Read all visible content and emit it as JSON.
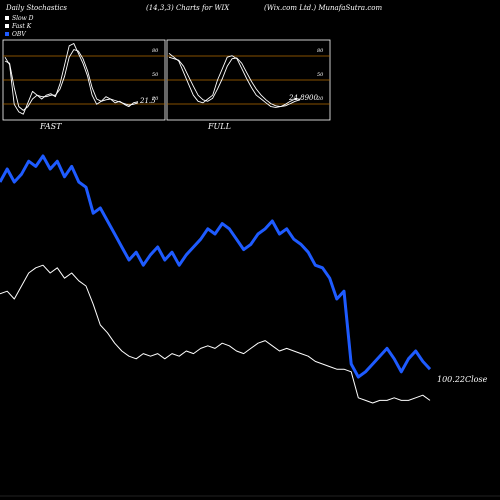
{
  "header": {
    "left": "Daily Stochastics",
    "center": "(14,3,3) Charts for WIX",
    "right": "(Wix.com Ltd.) MunafaSutra.com"
  },
  "legend": [
    {
      "label": "Slow  D",
      "color": "#ffffff"
    },
    {
      "label": "Fast K",
      "color": "#ffffff"
    },
    {
      "label": "OBV",
      "color": "#1e5bff"
    }
  ],
  "panels": [
    {
      "label": "FAST",
      "value_label": "21.5",
      "levels": [
        "80",
        "50",
        "20"
      ]
    },
    {
      "label": "FULL",
      "value_label": "24.8900",
      "levels": [
        "80",
        "50",
        "20"
      ]
    }
  ],
  "close_label": "100.22Close",
  "colors": {
    "background": "#000000",
    "obv": "#1e5bff",
    "price": "#ffffff",
    "level": "#b36b00"
  },
  "chart_data": [
    {
      "type": "line",
      "title": "FAST",
      "ylim": [
        0,
        100
      ],
      "levels": [
        80,
        50,
        20
      ],
      "series": [
        {
          "name": "Fast K",
          "values": [
            80,
            70,
            18,
            8,
            5,
            20,
            35,
            30,
            25,
            30,
            32,
            28,
            45,
            70,
            95,
            98,
            85,
            72,
            55,
            30,
            18,
            22,
            28,
            25,
            20,
            22,
            18,
            15,
            20,
            21.5
          ]
        },
        {
          "name": "Slow  D",
          "values": [
            75,
            72,
            40,
            15,
            10,
            15,
            25,
            30,
            28,
            28,
            30,
            30,
            38,
            55,
            80,
            90,
            88,
            78,
            62,
            40,
            25,
            22,
            24,
            25,
            23,
            21,
            19,
            17,
            18,
            20
          ]
        }
      ]
    },
    {
      "type": "line",
      "title": "FULL",
      "ylim": [
        0,
        100
      ],
      "levels": [
        80,
        50,
        20
      ],
      "series": [
        {
          "name": "Fast K",
          "values": [
            85,
            80,
            75,
            60,
            45,
            30,
            22,
            20,
            25,
            30,
            50,
            65,
            80,
            82,
            78,
            65,
            52,
            40,
            30,
            25,
            20,
            15,
            14,
            15,
            18,
            22,
            25,
            24.89
          ]
        },
        {
          "name": "Slow  D",
          "values": [
            80,
            78,
            76,
            68,
            55,
            42,
            30,
            24,
            22,
            26,
            38,
            52,
            68,
            78,
            79,
            72,
            60,
            48,
            38,
            30,
            24,
            19,
            16,
            15,
            16,
            19,
            22,
            24
          ]
        }
      ]
    },
    {
      "type": "line",
      "ylim": [
        0,
        100
      ],
      "series": [
        {
          "name": "OBV",
          "values": [
            80,
            85,
            80,
            83,
            88,
            86,
            90,
            85,
            88,
            82,
            86,
            80,
            78,
            68,
            70,
            65,
            60,
            55,
            50,
            53,
            48,
            52,
            55,
            50,
            53,
            48,
            52,
            55,
            58,
            62,
            60,
            64,
            62,
            58,
            54,
            56,
            60,
            62,
            65,
            60,
            62,
            58,
            56,
            53,
            48,
            47,
            43,
            35,
            38,
            10,
            5,
            7,
            10,
            13,
            16,
            12,
            7,
            12,
            15,
            11,
            8
          ]
        },
        {
          "name": "Close",
          "values": [
            37,
            38,
            35,
            40,
            45,
            47,
            48,
            45,
            47,
            43,
            45,
            42,
            40,
            33,
            25,
            22,
            18,
            15,
            13,
            12,
            14,
            13,
            14,
            12,
            14,
            13,
            15,
            14,
            16,
            17,
            16,
            18,
            17,
            15,
            14,
            16,
            18,
            19,
            17,
            15,
            16,
            15,
            14,
            13,
            11,
            10,
            9,
            8,
            8,
            7,
            -3,
            -4,
            -5,
            -4,
            -4,
            -3,
            -4,
            -4,
            -3,
            -2,
            -4
          ]
        }
      ]
    }
  ]
}
